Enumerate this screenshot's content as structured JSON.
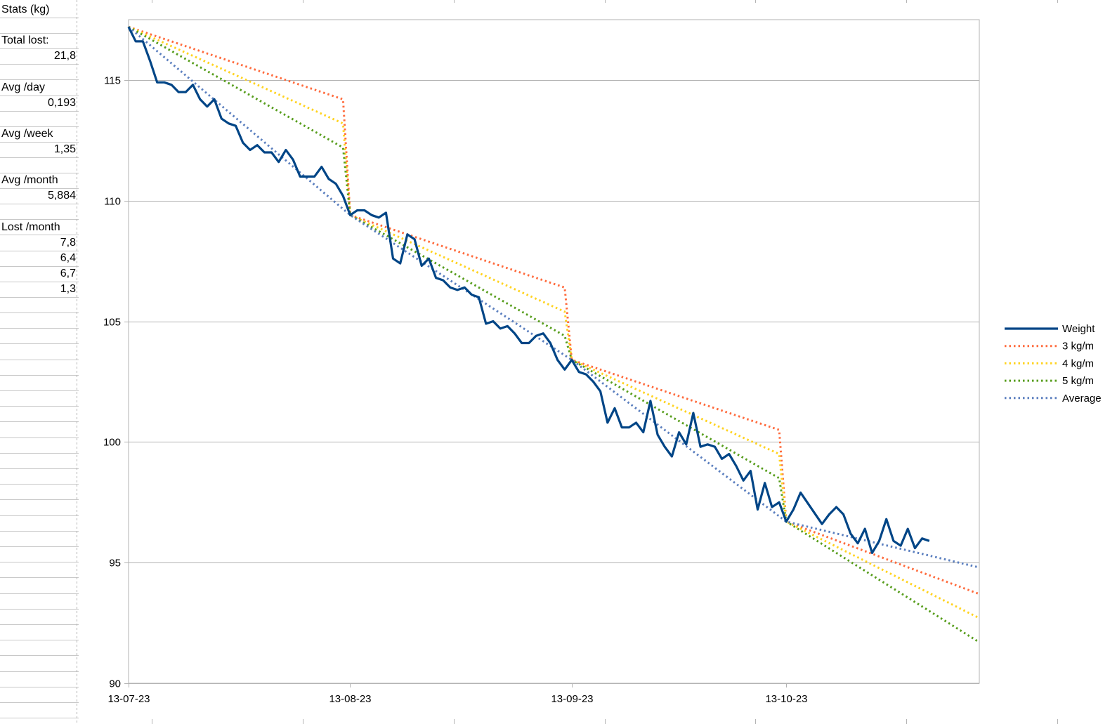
{
  "stats": {
    "title": "Stats (kg)",
    "total_lost_label": "Total lost:",
    "total_lost_value": "21,8",
    "avg_day_label": "Avg /day",
    "avg_day_value": "0,193",
    "avg_week_label": "Avg /week",
    "avg_week_value": "1,35",
    "avg_month_label": "Avg /month",
    "avg_month_value": "5,884",
    "lost_month_label": "Lost /month",
    "lost_month_values": [
      "7,8",
      "6,4",
      "6,7",
      "1,3"
    ]
  },
  "chart_data": {
    "type": "line",
    "title": "",
    "xlabel": "",
    "ylabel": "",
    "x_range": [
      "2023-07-13",
      "2023-11-09"
    ],
    "ylim": [
      90,
      117.5
    ],
    "y_ticks": [
      90,
      95,
      100,
      105,
      110,
      115
    ],
    "y_tick_labels": [
      "90",
      "95",
      "100",
      "105",
      "110",
      "115"
    ],
    "x_ticks": [
      "2023-07-13",
      "2023-08-13",
      "2023-09-13",
      "2023-10-13"
    ],
    "x_tick_labels": [
      "13-07-23",
      "13-08-23",
      "13-09-23",
      "13-10-23"
    ],
    "grid": "horizontal",
    "legend_position": "right",
    "series": [
      {
        "name": "Weight",
        "style": "solid",
        "color": "#004586",
        "points": [
          [
            "2023-07-13",
            117.2
          ],
          [
            "2023-07-14",
            116.6
          ],
          [
            "2023-07-15",
            116.6
          ],
          [
            "2023-07-16",
            115.8
          ],
          [
            "2023-07-17",
            114.9
          ],
          [
            "2023-07-18",
            114.9
          ],
          [
            "2023-07-19",
            114.8
          ],
          [
            "2023-07-20",
            114.5
          ],
          [
            "2023-07-21",
            114.5
          ],
          [
            "2023-07-22",
            114.8
          ],
          [
            "2023-07-23",
            114.2
          ],
          [
            "2023-07-24",
            113.9
          ],
          [
            "2023-07-25",
            114.2
          ],
          [
            "2023-07-26",
            113.4
          ],
          [
            "2023-07-27",
            113.2
          ],
          [
            "2023-07-28",
            113.1
          ],
          [
            "2023-07-29",
            112.4
          ],
          [
            "2023-07-30",
            112.1
          ],
          [
            "2023-07-31",
            112.3
          ],
          [
            "2023-08-01",
            112.0
          ],
          [
            "2023-08-02",
            112.0
          ],
          [
            "2023-08-03",
            111.6
          ],
          [
            "2023-08-04",
            112.1
          ],
          [
            "2023-08-05",
            111.7
          ],
          [
            "2023-08-06",
            111.0
          ],
          [
            "2023-08-07",
            111.0
          ],
          [
            "2023-08-08",
            111.0
          ],
          [
            "2023-08-09",
            111.4
          ],
          [
            "2023-08-10",
            110.9
          ],
          [
            "2023-08-11",
            110.7
          ],
          [
            "2023-08-12",
            110.2
          ],
          [
            "2023-08-13",
            109.4
          ],
          [
            "2023-08-14",
            109.6
          ],
          [
            "2023-08-15",
            109.6
          ],
          [
            "2023-08-16",
            109.4
          ],
          [
            "2023-08-17",
            109.3
          ],
          [
            "2023-08-18",
            109.5
          ],
          [
            "2023-08-19",
            107.6
          ],
          [
            "2023-08-20",
            107.4
          ],
          [
            "2023-08-21",
            108.6
          ],
          [
            "2023-08-22",
            108.4
          ],
          [
            "2023-08-23",
            107.3
          ],
          [
            "2023-08-24",
            107.6
          ],
          [
            "2023-08-25",
            106.8
          ],
          [
            "2023-08-26",
            106.7
          ],
          [
            "2023-08-27",
            106.4
          ],
          [
            "2023-08-28",
            106.3
          ],
          [
            "2023-08-29",
            106.4
          ],
          [
            "2023-08-30",
            106.1
          ],
          [
            "2023-08-31",
            106.0
          ],
          [
            "2023-09-01",
            104.9
          ],
          [
            "2023-09-02",
            105.0
          ],
          [
            "2023-09-03",
            104.7
          ],
          [
            "2023-09-04",
            104.8
          ],
          [
            "2023-09-05",
            104.5
          ],
          [
            "2023-09-06",
            104.1
          ],
          [
            "2023-09-07",
            104.1
          ],
          [
            "2023-09-08",
            104.4
          ],
          [
            "2023-09-09",
            104.5
          ],
          [
            "2023-09-10",
            104.1
          ],
          [
            "2023-09-11",
            103.4
          ],
          [
            "2023-09-12",
            103.0
          ],
          [
            "2023-09-13",
            103.4
          ],
          [
            "2023-09-14",
            102.9
          ],
          [
            "2023-09-15",
            102.8
          ],
          [
            "2023-09-16",
            102.5
          ],
          [
            "2023-09-17",
            102.1
          ],
          [
            "2023-09-18",
            100.8
          ],
          [
            "2023-09-19",
            101.4
          ],
          [
            "2023-09-20",
            100.6
          ],
          [
            "2023-09-21",
            100.6
          ],
          [
            "2023-09-22",
            100.8
          ],
          [
            "2023-09-23",
            100.4
          ],
          [
            "2023-09-24",
            101.7
          ],
          [
            "2023-09-25",
            100.3
          ],
          [
            "2023-09-26",
            99.8
          ],
          [
            "2023-09-27",
            99.4
          ],
          [
            "2023-09-28",
            100.4
          ],
          [
            "2023-09-29",
            99.9
          ],
          [
            "2023-09-30",
            101.2
          ],
          [
            "2023-10-01",
            99.8
          ],
          [
            "2023-10-02",
            99.9
          ],
          [
            "2023-10-03",
            99.8
          ],
          [
            "2023-10-04",
            99.3
          ],
          [
            "2023-10-05",
            99.5
          ],
          [
            "2023-10-06",
            99.0
          ],
          [
            "2023-10-07",
            98.4
          ],
          [
            "2023-10-08",
            98.8
          ],
          [
            "2023-10-09",
            97.2
          ],
          [
            "2023-10-10",
            98.3
          ],
          [
            "2023-10-11",
            97.3
          ],
          [
            "2023-10-12",
            97.5
          ],
          [
            "2023-10-13",
            96.7
          ],
          [
            "2023-10-14",
            97.2
          ],
          [
            "2023-10-15",
            97.9
          ],
          [
            "2023-10-18",
            96.6
          ],
          [
            "2023-10-19",
            97.0
          ],
          [
            "2023-10-20",
            97.3
          ],
          [
            "2023-10-21",
            97.0
          ],
          [
            "2023-10-22",
            96.2
          ],
          [
            "2023-10-23",
            95.8
          ],
          [
            "2023-10-24",
            96.4
          ],
          [
            "2023-10-25",
            95.4
          ],
          [
            "2023-10-26",
            95.9
          ],
          [
            "2023-10-27",
            96.8
          ],
          [
            "2023-10-28",
            95.9
          ],
          [
            "2023-10-29",
            95.7
          ],
          [
            "2023-10-30",
            96.4
          ],
          [
            "2023-10-31",
            95.6
          ],
          [
            "2023-11-01",
            96.0
          ],
          [
            "2023-11-02",
            95.9
          ]
        ]
      },
      {
        "name": "3 kg/m",
        "style": "dotted",
        "color": "#ff6b3d",
        "points": [
          [
            "2023-07-13",
            117.2
          ],
          [
            "2023-08-12",
            114.2
          ],
          [
            "2023-08-13",
            109.4
          ],
          [
            "2023-09-12",
            106.4
          ],
          [
            "2023-09-13",
            103.4
          ],
          [
            "2023-10-12",
            100.5
          ],
          [
            "2023-10-13",
            96.7
          ],
          [
            "2023-11-09",
            93.7
          ]
        ]
      },
      {
        "name": "4 kg/m",
        "style": "dotted",
        "color": "#ffd320",
        "points": [
          [
            "2023-07-13",
            117.2
          ],
          [
            "2023-08-12",
            113.2
          ],
          [
            "2023-08-13",
            109.4
          ],
          [
            "2023-09-12",
            105.4
          ],
          [
            "2023-09-13",
            103.4
          ],
          [
            "2023-10-12",
            99.5
          ],
          [
            "2023-10-13",
            96.7
          ],
          [
            "2023-11-09",
            92.7
          ]
        ]
      },
      {
        "name": "5 kg/m",
        "style": "dotted",
        "color": "#579d1c",
        "points": [
          [
            "2023-07-13",
            117.2
          ],
          [
            "2023-08-12",
            112.2
          ],
          [
            "2023-08-13",
            109.4
          ],
          [
            "2023-09-12",
            104.4
          ],
          [
            "2023-09-13",
            103.4
          ],
          [
            "2023-10-12",
            98.5
          ],
          [
            "2023-10-13",
            96.7
          ],
          [
            "2023-11-09",
            91.7
          ]
        ]
      },
      {
        "name": "Average",
        "style": "dotted",
        "color": "#5b7fbf",
        "points": [
          [
            "2023-07-13",
            117.2
          ],
          [
            "2023-08-13",
            109.4
          ],
          [
            "2023-09-13",
            103.4
          ],
          [
            "2023-10-13",
            96.7
          ],
          [
            "2023-11-09",
            94.8
          ]
        ]
      }
    ]
  }
}
